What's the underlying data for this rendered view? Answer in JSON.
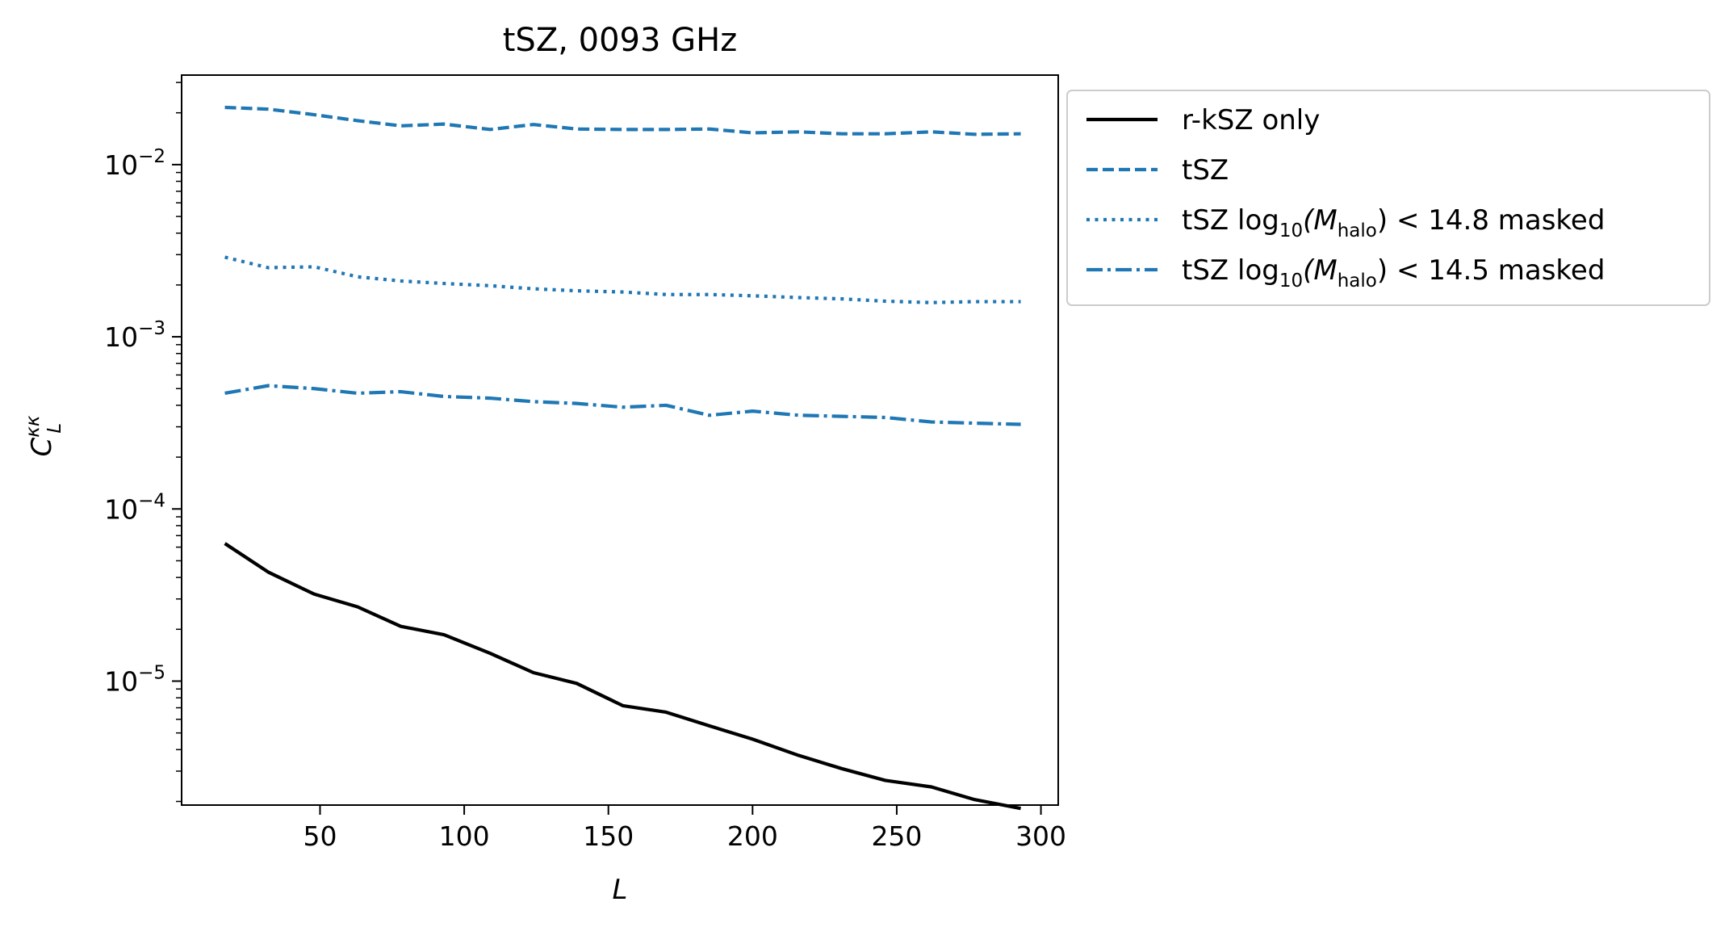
{
  "chart_data": {
    "type": "line",
    "title": "tSZ, 0093 GHz",
    "xlabel": "L",
    "ylabel": {
      "base": "C",
      "sup": "κκ",
      "sub": "L"
    },
    "xlim": [
      2,
      306
    ],
    "ylim_log10": [
      -5.72,
      -1.48
    ],
    "yscale": "log",
    "x_ticks": [
      50,
      100,
      150,
      200,
      250,
      300
    ],
    "y_ticks": [
      {
        "exp": -2,
        "base": "10",
        "sup": "−2"
      },
      {
        "exp": -3,
        "base": "10",
        "sup": "−3"
      },
      {
        "exp": -4,
        "base": "10",
        "sup": "−4"
      },
      {
        "exp": -5,
        "base": "10",
        "sup": "−5"
      }
    ],
    "legend_position": "outside-right-top",
    "x": [
      17,
      32,
      48,
      63,
      78,
      93,
      109,
      124,
      139,
      155,
      170,
      185,
      200,
      216,
      231,
      246,
      262,
      277,
      293
    ],
    "series": [
      {
        "name": "r-kSZ only",
        "color": "#000000",
        "dash": "solid",
        "values": [
          6.3e-05,
          4.3e-05,
          3.2e-05,
          2.7e-05,
          2.08e-05,
          1.86e-05,
          1.45e-05,
          1.12e-05,
          9.7e-06,
          7.2e-06,
          6.6e-06,
          5.5e-06,
          4.6e-06,
          3.7e-06,
          3.1e-06,
          2.65e-06,
          2.43e-06,
          2.05e-06,
          1.82e-06
        ]
      },
      {
        "name": "tSZ",
        "color": "#1f77b4",
        "dash": "dashed",
        "values": [
          0.0215,
          0.021,
          0.0195,
          0.018,
          0.0168,
          0.0172,
          0.016,
          0.0171,
          0.0161,
          0.016,
          0.016,
          0.0161,
          0.0153,
          0.0155,
          0.0151,
          0.0151,
          0.0155,
          0.015,
          0.0151
        ]
      },
      {
        "name": {
          "pre": "tSZ log",
          "sub1": "10",
          "mid": "(M",
          "sub2": "halo",
          "post": ") < 14.8 masked"
        },
        "color": "#1f77b4",
        "dash": "dotted",
        "values": [
          0.0029,
          0.00252,
          0.00255,
          0.00223,
          0.00211,
          0.00204,
          0.00198,
          0.0019,
          0.00185,
          0.00182,
          0.00176,
          0.00176,
          0.00173,
          0.00169,
          0.00166,
          0.00161,
          0.00158,
          0.0016,
          0.0016
        ]
      },
      {
        "name": {
          "pre": "tSZ log",
          "sub1": "10",
          "mid": "(M",
          "sub2": "halo",
          "post": ") < 14.5 masked"
        },
        "color": "#1f77b4",
        "dash": "dashdot",
        "values": [
          0.00047,
          0.00052,
          0.0005,
          0.00047,
          0.00048,
          0.00045,
          0.00044,
          0.00042,
          0.00041,
          0.00039,
          0.0004,
          0.00035,
          0.00037,
          0.00035,
          0.000345,
          0.00034,
          0.00032,
          0.000315,
          0.00031
        ]
      }
    ]
  }
}
